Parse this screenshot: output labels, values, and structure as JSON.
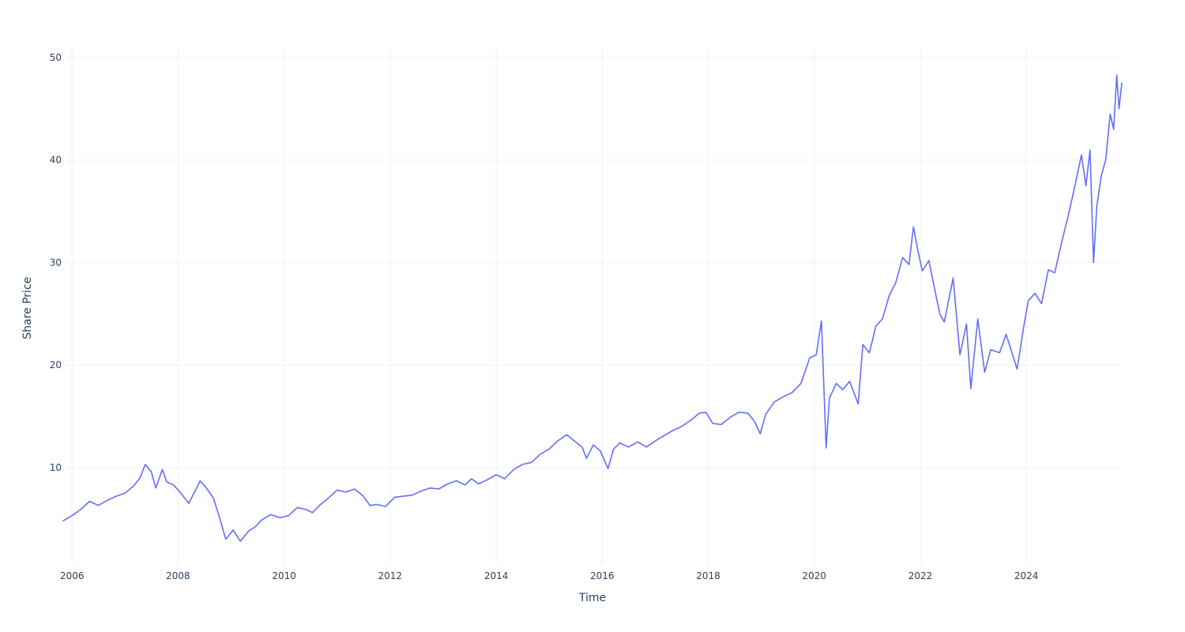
{
  "chart_data": {
    "type": "line",
    "title": "",
    "xlabel": "Time",
    "ylabel": "Share Price",
    "xlim": [
      "2005-11-01",
      "2025-10-20"
    ],
    "ylim": [
      0.5,
      51
    ],
    "x_ticks": [
      "2006-01-01",
      "2008-01-01",
      "2010-01-01",
      "2012-01-01",
      "2014-01-01",
      "2016-01-01",
      "2018-01-01",
      "2020-01-01",
      "2022-01-01",
      "2024-01-01"
    ],
    "x_tick_labels": [
      "2006",
      "2008",
      "2010",
      "2012",
      "2014",
      "2016",
      "2018",
      "2020",
      "2022",
      "2024"
    ],
    "y_ticks": [
      10,
      20,
      30,
      40,
      50
    ],
    "y_tick_labels": [
      "10",
      "20",
      "30",
      "40",
      "50"
    ],
    "grid": true,
    "legend": "none",
    "line_color": "#636efa",
    "grid_color": "#ebf0f8",
    "text_color": "#2a3f5f",
    "series": [
      {
        "points": [
          [
            "2005-11-01",
            4.8
          ],
          [
            "2006-01-01",
            5.3
          ],
          [
            "2006-03-01",
            5.9
          ],
          [
            "2006-05-01",
            6.7
          ],
          [
            "2006-07-01",
            6.3
          ],
          [
            "2006-09-01",
            6.8
          ],
          [
            "2006-11-01",
            7.2
          ],
          [
            "2007-01-01",
            7.5
          ],
          [
            "2007-03-01",
            8.2
          ],
          [
            "2007-04-15",
            9.0
          ],
          [
            "2007-05-20",
            10.3
          ],
          [
            "2007-07-01",
            9.6
          ],
          [
            "2007-08-01",
            8.0
          ],
          [
            "2007-09-15",
            9.8
          ],
          [
            "2007-10-15",
            8.6
          ],
          [
            "2007-12-01",
            8.3
          ],
          [
            "2008-01-15",
            7.6
          ],
          [
            "2008-03-15",
            6.5
          ],
          [
            "2008-05-01",
            7.8
          ],
          [
            "2008-06-01",
            8.7
          ],
          [
            "2008-07-15",
            8.0
          ],
          [
            "2008-09-01",
            7.0
          ],
          [
            "2008-10-15",
            5.0
          ],
          [
            "2008-11-25",
            3.0
          ],
          [
            "2009-01-15",
            3.9
          ],
          [
            "2009-03-05",
            2.8
          ],
          [
            "2009-05-01",
            3.8
          ],
          [
            "2009-06-15",
            4.2
          ],
          [
            "2009-08-01",
            4.9
          ],
          [
            "2009-10-01",
            5.4
          ],
          [
            "2009-12-01",
            5.1
          ],
          [
            "2010-02-01",
            5.3
          ],
          [
            "2010-04-01",
            6.1
          ],
          [
            "2010-06-01",
            5.9
          ],
          [
            "2010-07-15",
            5.6
          ],
          [
            "2010-09-01",
            6.3
          ],
          [
            "2010-11-01",
            7.0
          ],
          [
            "2011-01-01",
            7.8
          ],
          [
            "2011-03-01",
            7.6
          ],
          [
            "2011-05-01",
            7.9
          ],
          [
            "2011-07-01",
            7.2
          ],
          [
            "2011-08-15",
            6.3
          ],
          [
            "2011-10-01",
            6.4
          ],
          [
            "2011-12-01",
            6.2
          ],
          [
            "2012-02-01",
            7.1
          ],
          [
            "2012-04-01",
            7.2
          ],
          [
            "2012-06-01",
            7.3
          ],
          [
            "2012-08-01",
            7.7
          ],
          [
            "2012-10-01",
            8.0
          ],
          [
            "2012-12-01",
            7.9
          ],
          [
            "2013-02-01",
            8.4
          ],
          [
            "2013-04-01",
            8.7
          ],
          [
            "2013-06-01",
            8.3
          ],
          [
            "2013-07-15",
            8.9
          ],
          [
            "2013-09-01",
            8.4
          ],
          [
            "2013-11-01",
            8.8
          ],
          [
            "2014-01-01",
            9.3
          ],
          [
            "2014-03-01",
            8.9
          ],
          [
            "2014-05-01",
            9.8
          ],
          [
            "2014-07-01",
            10.3
          ],
          [
            "2014-09-01",
            10.5
          ],
          [
            "2014-11-01",
            11.3
          ],
          [
            "2015-01-01",
            11.8
          ],
          [
            "2015-03-01",
            12.6
          ],
          [
            "2015-05-01",
            13.2
          ],
          [
            "2015-07-01",
            12.5
          ],
          [
            "2015-08-15",
            12.0
          ],
          [
            "2015-09-15",
            10.9
          ],
          [
            "2015-11-01",
            12.2
          ],
          [
            "2015-12-20",
            11.6
          ],
          [
            "2016-02-10",
            9.9
          ],
          [
            "2016-03-20",
            11.8
          ],
          [
            "2016-05-01",
            12.4
          ],
          [
            "2016-07-01",
            12.0
          ],
          [
            "2016-09-01",
            12.5
          ],
          [
            "2016-11-01",
            12.0
          ],
          [
            "2017-01-01",
            12.6
          ],
          [
            "2017-03-01",
            13.1
          ],
          [
            "2017-05-01",
            13.6
          ],
          [
            "2017-07-01",
            14.0
          ],
          [
            "2017-09-01",
            14.6
          ],
          [
            "2017-11-01",
            15.3
          ],
          [
            "2017-12-15",
            15.4
          ],
          [
            "2018-02-01",
            14.3
          ],
          [
            "2018-04-01",
            14.2
          ],
          [
            "2018-06-01",
            14.9
          ],
          [
            "2018-08-01",
            15.4
          ],
          [
            "2018-10-01",
            15.3
          ],
          [
            "2018-11-15",
            14.5
          ],
          [
            "2018-12-25",
            13.3
          ],
          [
            "2019-02-01",
            15.2
          ],
          [
            "2019-04-01",
            16.4
          ],
          [
            "2019-06-01",
            16.9
          ],
          [
            "2019-08-01",
            17.3
          ],
          [
            "2019-10-01",
            18.2
          ],
          [
            "2019-12-01",
            20.7
          ],
          [
            "2020-01-15",
            21.0
          ],
          [
            "2020-02-20",
            24.3
          ],
          [
            "2020-03-10",
            17.0
          ],
          [
            "2020-03-23",
            11.9
          ],
          [
            "2020-04-15",
            16.8
          ],
          [
            "2020-06-01",
            18.2
          ],
          [
            "2020-07-15",
            17.6
          ],
          [
            "2020-09-01",
            18.4
          ],
          [
            "2020-10-30",
            16.2
          ],
          [
            "2020-12-01",
            22.0
          ],
          [
            "2021-01-15",
            21.2
          ],
          [
            "2021-03-01",
            23.8
          ],
          [
            "2021-04-15",
            24.5
          ],
          [
            "2021-06-01",
            26.8
          ],
          [
            "2021-07-15",
            28.0
          ],
          [
            "2021-09-01",
            30.5
          ],
          [
            "2021-10-15",
            29.8
          ],
          [
            "2021-11-15",
            33.5
          ],
          [
            "2021-12-15",
            31.2
          ],
          [
            "2022-01-15",
            29.2
          ],
          [
            "2022-03-01",
            30.2
          ],
          [
            "2022-04-01",
            28.0
          ],
          [
            "2022-05-15",
            25.0
          ],
          [
            "2022-06-15",
            24.2
          ],
          [
            "2022-08-15",
            28.5
          ],
          [
            "2022-10-01",
            21.0
          ],
          [
            "2022-11-15",
            24.0
          ],
          [
            "2022-12-15",
            17.7
          ],
          [
            "2023-02-01",
            24.5
          ],
          [
            "2023-03-20",
            19.3
          ],
          [
            "2023-05-01",
            21.5
          ],
          [
            "2023-07-01",
            21.2
          ],
          [
            "2023-08-15",
            23.0
          ],
          [
            "2023-10-30",
            19.6
          ],
          [
            "2023-12-15",
            23.8
          ],
          [
            "2024-01-15",
            26.3
          ],
          [
            "2024-03-01",
            27.0
          ],
          [
            "2024-04-15",
            26.0
          ],
          [
            "2024-06-01",
            29.3
          ],
          [
            "2024-07-15",
            29.0
          ],
          [
            "2024-09-01",
            32.0
          ],
          [
            "2024-10-15",
            34.5
          ],
          [
            "2024-12-01",
            37.5
          ],
          [
            "2025-01-15",
            40.5
          ],
          [
            "2025-02-15",
            37.5
          ],
          [
            "2025-03-15",
            41.0
          ],
          [
            "2025-04-08",
            30.0
          ],
          [
            "2025-05-01",
            35.5
          ],
          [
            "2025-06-01",
            38.5
          ],
          [
            "2025-07-01",
            40.0
          ],
          [
            "2025-08-01",
            44.5
          ],
          [
            "2025-08-25",
            43.0
          ],
          [
            "2025-09-15",
            48.3
          ],
          [
            "2025-10-01",
            45.0
          ],
          [
            "2025-10-20",
            47.5
          ]
        ]
      }
    ]
  }
}
